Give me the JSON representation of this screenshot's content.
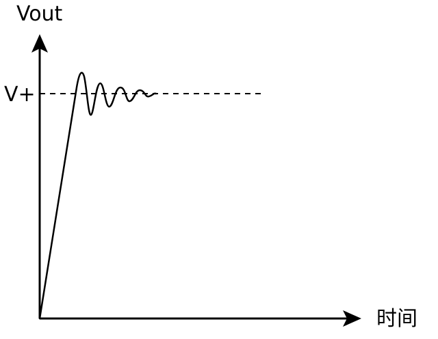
{
  "labels": {
    "y_axis": "Vout",
    "reference": "V+",
    "x_axis": "时间"
  },
  "colors": {
    "stroke": "#000000",
    "background": "#ffffff"
  },
  "response": {
    "shape": "linear ramp, overshoot, damped oscillation settling to V+",
    "oscillation_cycles": 4,
    "reference_line_style": "dashed"
  }
}
